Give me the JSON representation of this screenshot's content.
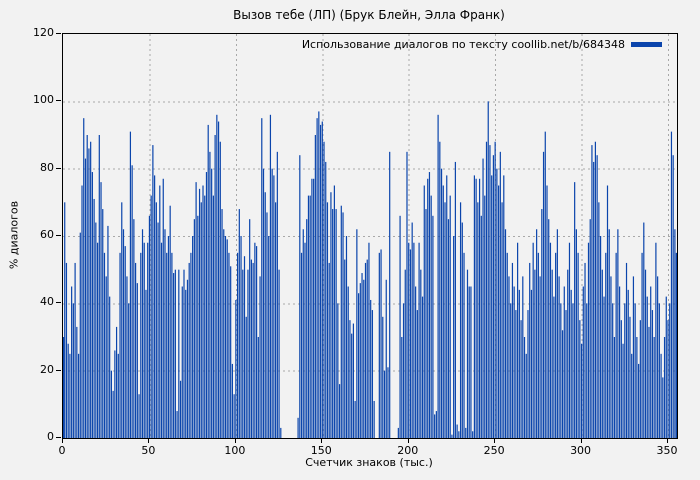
{
  "title": "Вызов тебе (ЛП) (Брук Блейн, Элла Франк)",
  "legend": {
    "label": "Использование диалогов по тексту coollib.net/b/684348"
  },
  "axes": {
    "x_label": "Счетчик знаков (тыс.)",
    "y_label": "% диалогов",
    "x_ticks": [
      0,
      50,
      100,
      150,
      200,
      250,
      300,
      350
    ],
    "y_ticks": [
      0,
      20,
      40,
      60,
      80,
      100,
      120
    ]
  },
  "colors": {
    "bar": "#0b45ac",
    "background": "#f2f2f2",
    "grid": "#a8a8a8",
    "border": "#000000",
    "text": "#000000"
  },
  "chart_data": {
    "type": "bar",
    "title": "Вызов тебе (ЛП) (Брук Блейн, Элла Франк)",
    "series_name": "Использование диалогов по тексту coollib.net/b/684348",
    "xlabel": "Счетчик знаков (тыс.)",
    "ylabel": "% диалогов",
    "xlim": [
      0,
      355
    ],
    "ylim": [
      0,
      120
    ],
    "grid": true,
    "legend_position": "top-right",
    "x_start": 0,
    "x_step": 1,
    "values": [
      30,
      70,
      52,
      28,
      25,
      45,
      40,
      52,
      33,
      25,
      61,
      75,
      95,
      83,
      90,
      86,
      88,
      79,
      71,
      64,
      58,
      90,
      76,
      68,
      55,
      48,
      63,
      42,
      20,
      14,
      26,
      33,
      25,
      55,
      70,
      62,
      57,
      48,
      40,
      91,
      81,
      65,
      52,
      46,
      13,
      55,
      62,
      58,
      44,
      58,
      66,
      72,
      87,
      78,
      70,
      64,
      75,
      58,
      77,
      62,
      55,
      60,
      69,
      55,
      49,
      50,
      8,
      50,
      17,
      45,
      50,
      44,
      47,
      52,
      55,
      60,
      65,
      76,
      66,
      74,
      70,
      75,
      72,
      79,
      93,
      85,
      80,
      72,
      90,
      96,
      94,
      88,
      68,
      62,
      60,
      59,
      55,
      51,
      22,
      13,
      41,
      55,
      68,
      60,
      50,
      54,
      36,
      50,
      65,
      53,
      52,
      58,
      57,
      30,
      48,
      95,
      80,
      73,
      67,
      60,
      96,
      80,
      78,
      70,
      85,
      50,
      3,
      0,
      0,
      0,
      0,
      0,
      0,
      0,
      0,
      0,
      6,
      84,
      55,
      62,
      58,
      65,
      72,
      72,
      77,
      77,
      90,
      95,
      97,
      93,
      94,
      88,
      82,
      70,
      52,
      73,
      68,
      75,
      68,
      40,
      16,
      69,
      67,
      53,
      60,
      45,
      35,
      31,
      34,
      11,
      62,
      43,
      46,
      49,
      47,
      52,
      53,
      58,
      41,
      38,
      11,
      0,
      0,
      55,
      56,
      36,
      20,
      47,
      21,
      85,
      0,
      0,
      0,
      0,
      3,
      66,
      30,
      40,
      50,
      85,
      58,
      56,
      64,
      58,
      45,
      38,
      58,
      50,
      42,
      75,
      68,
      77,
      79,
      72,
      66,
      7,
      8,
      96,
      88,
      80,
      75,
      70,
      78,
      65,
      72,
      1,
      60,
      82,
      4,
      2,
      70,
      64,
      55,
      3,
      50,
      45,
      45,
      2,
      78,
      77,
      70,
      77,
      66,
      83,
      72,
      88,
      100,
      87,
      78,
      84,
      88,
      80,
      75,
      85,
      70,
      78,
      62,
      55,
      48,
      40,
      52,
      45,
      38,
      58,
      44,
      35,
      48,
      30,
      25,
      38,
      52,
      44,
      58,
      50,
      62,
      55,
      48,
      68,
      85,
      91,
      75,
      65,
      58,
      50,
      42,
      55,
      62,
      48,
      40,
      32,
      45,
      38,
      50,
      58,
      44,
      40,
      76,
      62,
      55,
      35,
      28,
      45,
      52,
      40,
      58,
      65,
      87,
      82,
      88,
      84,
      70,
      60,
      50,
      42,
      55,
      75,
      62,
      48,
      40,
      30,
      55,
      62,
      45,
      35,
      28,
      40,
      52,
      44,
      36,
      25,
      48,
      40,
      30,
      22,
      35,
      55,
      64,
      50,
      42,
      33,
      45,
      38,
      30,
      58,
      48,
      40,
      25,
      18,
      30,
      42,
      35,
      40,
      91,
      84,
      62,
      55
    ]
  }
}
